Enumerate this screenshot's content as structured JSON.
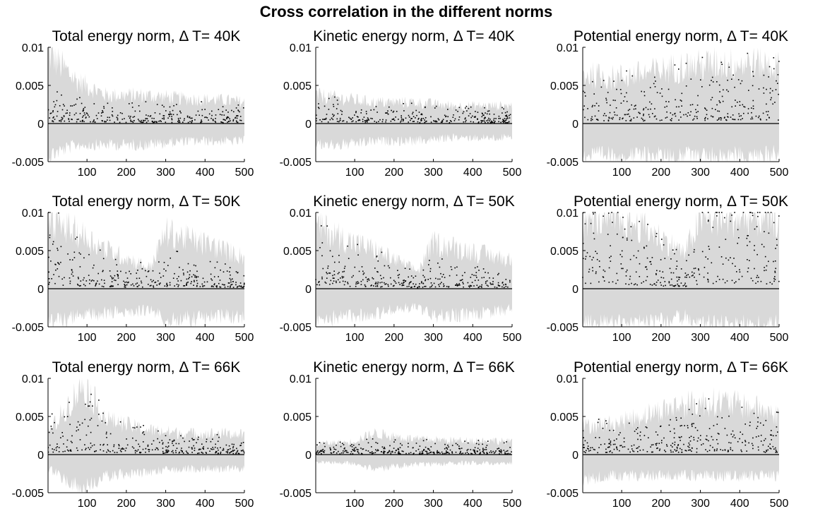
{
  "figure_title": "Cross correlation in the different norms",
  "colors": {
    "band": "#d9d9d9",
    "points": "#000000",
    "zero_line": "#000000",
    "axes": "#000000"
  },
  "chart_data": [
    {
      "type": "scatter",
      "title": "Total energy norm, Δ T= 40K",
      "xlim": [
        1,
        500
      ],
      "ylim": [
        -0.005,
        0.01
      ],
      "xticks": [
        100,
        200,
        300,
        400,
        500
      ],
      "xtick_labels": [
        "100",
        "200",
        "300",
        "400",
        "500"
      ],
      "yticks": [
        -0.005,
        0,
        0.005,
        0.01
      ],
      "ytick_labels": [
        "-0.005",
        "0",
        "0.005",
        "0.01"
      ],
      "series": [
        {
          "points_mean": [
            0.0015,
            0.0012,
            0.001,
            0.0009,
            0.0009,
            0.0008,
            0.0008
          ],
          "at_x": [
            1,
            75,
            150,
            250,
            350,
            450,
            500
          ],
          "band_upper": [
            0.01,
            0.006,
            0.004,
            0.004,
            0.0035,
            0.0033,
            0.003
          ],
          "band_lower": [
            -0.0045,
            -0.003,
            -0.003,
            -0.003,
            -0.0025,
            -0.0025,
            -0.0025
          ]
        }
      ]
    },
    {
      "type": "scatter",
      "title": "Kinetic energy norm, Δ T= 40K",
      "xlim": [
        1,
        500
      ],
      "ylim": [
        -0.005,
        0.01
      ],
      "xticks": [
        100,
        200,
        300,
        400,
        500
      ],
      "xtick_labels": [
        "100",
        "200",
        "300",
        "400",
        "500"
      ],
      "yticks": [
        -0.005,
        0,
        0.005,
        0.01
      ],
      "ytick_labels": [
        "-0.005",
        "0",
        "0.005",
        "0.01"
      ],
      "series": [
        {
          "points_mean": [
            0.0012,
            0.001,
            0.0009,
            0.0008,
            0.0008,
            0.0007,
            0.0007
          ],
          "at_x": [
            1,
            75,
            150,
            250,
            350,
            450,
            500
          ],
          "band_upper": [
            0.004,
            0.0035,
            0.003,
            0.003,
            0.0025,
            0.0025,
            0.0025
          ],
          "band_lower": [
            -0.003,
            -0.003,
            -0.0025,
            -0.0025,
            -0.002,
            -0.002,
            -0.002
          ]
        }
      ]
    },
    {
      "type": "scatter",
      "title": "Potential energy norm, Δ T= 40K",
      "xlim": [
        1,
        500
      ],
      "ylim": [
        -0.005,
        0.01
      ],
      "xticks": [
        100,
        200,
        300,
        400,
        500
      ],
      "xtick_labels": [
        "100",
        "200",
        "300",
        "400",
        "500"
      ],
      "yticks": [
        -0.005,
        0,
        0.005,
        0.01
      ],
      "ytick_labels": [
        "-0.005",
        "0",
        "0.005",
        "0.01"
      ],
      "series": [
        {
          "points_mean": [
            0.0025,
            0.0022,
            0.0022,
            0.0025,
            0.0028,
            0.003,
            0.003
          ],
          "at_x": [
            1,
            75,
            150,
            250,
            350,
            450,
            500
          ],
          "band_upper": [
            0.007,
            0.0065,
            0.007,
            0.008,
            0.0085,
            0.0085,
            0.008
          ],
          "band_lower": [
            -0.0045,
            -0.0045,
            -0.0045,
            -0.0045,
            -0.0045,
            -0.0045,
            -0.004
          ]
        }
      ]
    },
    {
      "type": "scatter",
      "title": "Total energy norm, Δ T= 50K",
      "xlim": [
        1,
        500
      ],
      "ylim": [
        -0.005,
        0.01
      ],
      "xticks": [
        100,
        200,
        300,
        400,
        500
      ],
      "xtick_labels": [
        "100",
        "200",
        "300",
        "400",
        "500"
      ],
      "yticks": [
        -0.005,
        0,
        0.005,
        0.01
      ],
      "ytick_labels": [
        "-0.005",
        "0",
        "0.005",
        "0.01"
      ],
      "series": [
        {
          "points_mean": [
            0.0035,
            0.0025,
            0.0015,
            0.001,
            0.002,
            0.0012,
            0.001
          ],
          "at_x": [
            1,
            75,
            150,
            260,
            300,
            420,
            500
          ],
          "band_upper": [
            0.01,
            0.008,
            0.0055,
            0.003,
            0.008,
            0.006,
            0.0045
          ],
          "band_lower": [
            -0.005,
            -0.004,
            -0.0035,
            -0.003,
            -0.0045,
            -0.004,
            -0.004
          ]
        }
      ]
    },
    {
      "type": "scatter",
      "title": "Kinetic energy norm, Δ T= 50K",
      "xlim": [
        1,
        500
      ],
      "ylim": [
        -0.005,
        0.01
      ],
      "xticks": [
        100,
        200,
        300,
        400,
        500
      ],
      "xtick_labels": [
        "100",
        "200",
        "300",
        "400",
        "500"
      ],
      "yticks": [
        -0.005,
        0,
        0.005,
        0.01
      ],
      "ytick_labels": [
        "-0.005",
        "0",
        "0.005",
        "0.01"
      ],
      "series": [
        {
          "points_mean": [
            0.003,
            0.002,
            0.0015,
            0.0008,
            0.0015,
            0.001,
            0.0008
          ],
          "at_x": [
            1,
            75,
            150,
            260,
            300,
            420,
            500
          ],
          "band_upper": [
            0.009,
            0.007,
            0.0055,
            0.0025,
            0.0065,
            0.005,
            0.004
          ],
          "band_lower": [
            -0.0045,
            -0.004,
            -0.0035,
            -0.0025,
            -0.004,
            -0.0035,
            -0.003
          ]
        }
      ]
    },
    {
      "type": "scatter",
      "title": "Potential energy norm, Δ T= 50K",
      "xlim": [
        1,
        500
      ],
      "ylim": [
        -0.005,
        0.01
      ],
      "xticks": [
        100,
        200,
        300,
        400,
        500
      ],
      "xtick_labels": [
        "100",
        "200",
        "300",
        "400",
        "500"
      ],
      "yticks": [
        -0.005,
        0,
        0.005,
        0.01
      ],
      "ytick_labels": [
        "-0.005",
        "0",
        "0.005",
        "0.01"
      ],
      "series": [
        {
          "points_mean": [
            0.0045,
            0.004,
            0.003,
            0.0015,
            0.0045,
            0.0045,
            0.004
          ],
          "at_x": [
            1,
            75,
            150,
            260,
            300,
            420,
            500
          ],
          "band_upper": [
            0.01,
            0.01,
            0.009,
            0.005,
            0.01,
            0.01,
            0.01
          ],
          "band_lower": [
            -0.005,
            -0.005,
            -0.005,
            -0.004,
            -0.005,
            -0.005,
            -0.005
          ]
        }
      ]
    },
    {
      "type": "scatter",
      "title": "Total energy norm, Δ T= 66K",
      "xlim": [
        1,
        500
      ],
      "ylim": [
        -0.005,
        0.01
      ],
      "xticks": [
        100,
        200,
        300,
        400,
        500
      ],
      "xtick_labels": [
        "100",
        "200",
        "300",
        "400",
        "500"
      ],
      "yticks": [
        -0.005,
        0,
        0.005,
        0.01
      ],
      "ytick_labels": [
        "-0.005",
        "0",
        "0.005",
        "0.01"
      ],
      "series": [
        {
          "points_mean": [
            0.0015,
            0.003,
            0.002,
            0.0012,
            0.001,
            0.0008,
            0.0008
          ],
          "at_x": [
            1,
            90,
            150,
            250,
            350,
            450,
            500
          ],
          "band_upper": [
            0.003,
            0.01,
            0.005,
            0.0035,
            0.003,
            0.003,
            0.0028
          ],
          "band_lower": [
            -0.002,
            -0.005,
            -0.003,
            -0.0025,
            -0.002,
            -0.002,
            -0.002
          ]
        }
      ]
    },
    {
      "type": "scatter",
      "title": "Kinetic energy norm, Δ T= 66K",
      "xlim": [
        1,
        500
      ],
      "ylim": [
        -0.005,
        0.01
      ],
      "xticks": [
        100,
        200,
        300,
        400,
        500
      ],
      "xtick_labels": [
        "100",
        "200",
        "300",
        "400",
        "500"
      ],
      "yticks": [
        -0.005,
        0,
        0.005,
        0.01
      ],
      "ytick_labels": [
        "-0.005",
        "0",
        "0.005",
        "0.01"
      ],
      "series": [
        {
          "points_mean": [
            0.0006,
            0.0006,
            0.0007,
            0.0006,
            0.0006,
            0.0006,
            0.0006
          ],
          "at_x": [
            1,
            90,
            150,
            250,
            350,
            450,
            500
          ],
          "band_upper": [
            0.0015,
            0.0018,
            0.003,
            0.0022,
            0.002,
            0.002,
            0.0018
          ],
          "band_lower": [
            -0.001,
            -0.0012,
            -0.002,
            -0.0015,
            -0.0012,
            -0.0012,
            -0.0012
          ]
        }
      ]
    },
    {
      "type": "scatter",
      "title": "Potential energy norm, Δ T= 66K",
      "xlim": [
        1,
        500
      ],
      "ylim": [
        -0.005,
        0.01
      ],
      "xticks": [
        100,
        200,
        300,
        400,
        500
      ],
      "xtick_labels": [
        "100",
        "200",
        "300",
        "400",
        "500"
      ],
      "yticks": [
        -0.005,
        0,
        0.005,
        0.01
      ],
      "ytick_labels": [
        "-0.005",
        "0",
        "0.005",
        "0.01"
      ],
      "series": [
        {
          "points_mean": [
            0.0015,
            0.0015,
            0.0018,
            0.002,
            0.0022,
            0.002,
            0.0018
          ],
          "at_x": [
            1,
            90,
            150,
            250,
            350,
            450,
            500
          ],
          "band_upper": [
            0.004,
            0.0045,
            0.0055,
            0.007,
            0.0075,
            0.0065,
            0.0055
          ],
          "band_lower": [
            -0.0035,
            -0.003,
            -0.003,
            -0.003,
            -0.003,
            -0.003,
            -0.003
          ]
        }
      ]
    }
  ]
}
